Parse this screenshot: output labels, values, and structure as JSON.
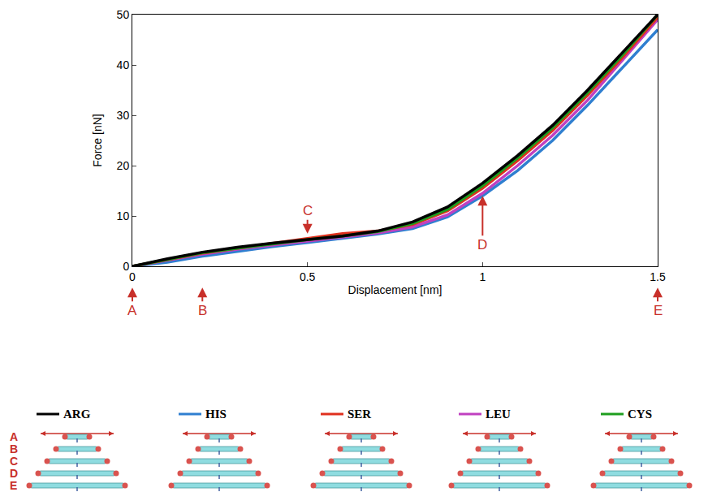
{
  "chart_data": {
    "type": "line",
    "x": [
      0,
      0.1,
      0.2,
      0.3,
      0.4,
      0.5,
      0.6,
      0.7,
      0.8,
      0.9,
      1.0,
      1.1,
      1.2,
      1.3,
      1.4,
      1.5
    ],
    "series": [
      {
        "name": "HIS",
        "color": "#2f7fd0",
        "values": [
          0,
          0.8,
          2.0,
          3.0,
          3.9,
          4.7,
          5.5,
          6.4,
          7.5,
          9.8,
          14,
          19,
          25,
          32,
          39.5,
          47
        ]
      },
      {
        "name": "LEU",
        "color": "#c040c0",
        "values": [
          0,
          1.2,
          2.4,
          3.4,
          4.2,
          5.0,
          5.8,
          6.6,
          7.8,
          10.2,
          14.5,
          20,
          26,
          33,
          41,
          49
        ]
      },
      {
        "name": "SER",
        "color": "#e0301e",
        "values": [
          0,
          1.3,
          2.6,
          3.6,
          4.6,
          5.6,
          6.5,
          7.0,
          8.3,
          11,
          15.5,
          21,
          27,
          34,
          41.5,
          49.5
        ]
      },
      {
        "name": "CYS",
        "color": "#1e9e1e",
        "values": [
          0,
          1.4,
          2.7,
          3.6,
          4.5,
          5.3,
          6.0,
          6.9,
          8.5,
          11.3,
          16,
          21.5,
          27.5,
          34.5,
          42,
          50
        ]
      },
      {
        "name": "ARG",
        "color": "#000000",
        "values": [
          0,
          1.5,
          2.8,
          3.8,
          4.6,
          5.3,
          6.0,
          7.0,
          8.8,
          11.8,
          16.5,
          22,
          28,
          35,
          42.5,
          50
        ]
      }
    ],
    "xlabel": "Displacement [nm]",
    "ylabel": "Force [nN]",
    "xlim": [
      0,
      1.5
    ],
    "ylim": [
      0,
      50
    ],
    "xticks": [
      0,
      0.5,
      1,
      1.5
    ],
    "yticks": [
      0,
      10,
      20,
      30,
      40,
      50
    ],
    "grid": false,
    "legend": "bottom",
    "annotations": [
      {
        "text": "A",
        "x": 0,
        "arrow": "up"
      },
      {
        "text": "B",
        "x": 0.2,
        "arrow": "up"
      },
      {
        "text": "C",
        "x": 0.5,
        "y": 6.5,
        "arrow": "down"
      },
      {
        "text": "D",
        "x": 1,
        "y": 14,
        "arrow": "up"
      },
      {
        "text": "E",
        "x": 1.5,
        "arrow": "up"
      }
    ]
  },
  "structure_rows": [
    "A",
    "B",
    "C",
    "D",
    "E"
  ]
}
